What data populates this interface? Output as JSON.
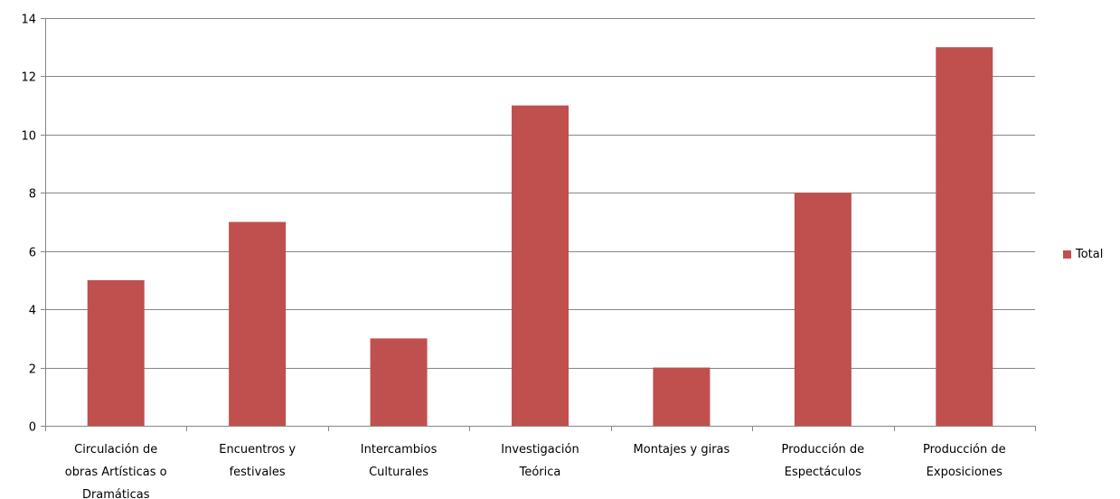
{
  "chart_data": {
    "type": "bar",
    "categories": [
      [
        "Circulación de",
        "obras Artísticas o",
        "Dramáticas"
      ],
      [
        "Encuentros y",
        "festivales"
      ],
      [
        "Intercambios",
        "Culturales"
      ],
      [
        "Investigación",
        "Teórica"
      ],
      [
        "Montajes y giras"
      ],
      [
        "Producción de",
        "Espectáculos"
      ],
      [
        "Producción de",
        "Exposiciones"
      ]
    ],
    "series": [
      {
        "name": "Total",
        "values": [
          5,
          7,
          3,
          11,
          2,
          8,
          13
        ],
        "color": "#c0504d"
      }
    ],
    "yticks": [
      "0",
      "2",
      "4",
      "6",
      "8",
      "10",
      "12",
      "14"
    ],
    "ylim": [
      0,
      14
    ],
    "grid": true,
    "legend_position": "right"
  }
}
